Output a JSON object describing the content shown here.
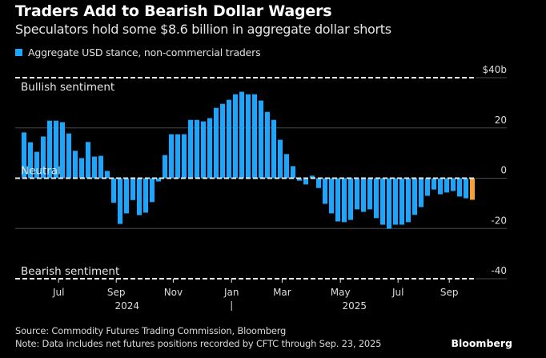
{
  "header": {
    "title": "Traders Add to Bearish Dollar Wagers",
    "subtitle": "Speculators hold some $8.6 billion in aggregate dollar shorts"
  },
  "legend": {
    "label": "Aggregate USD stance, non-commercial traders",
    "color": "#1aa7ff"
  },
  "footer": {
    "source": "Source: Commodity Futures Trading Commission, Bloomberg",
    "note": "Note: Data includes net futures positions recorded by CFTC through Sep. 23, 2025",
    "brand": "Bloomberg"
  },
  "chart_data": {
    "type": "bar",
    "title": "Traders Add to Bearish Dollar Wagers",
    "subtitle": "Speculators hold some $8.6 billion in aggregate dollar shorts",
    "xlabel": "",
    "ylabel": "",
    "ylim": [
      -40,
      40
    ],
    "yticks": [
      {
        "value": 40,
        "label": "$40b"
      },
      {
        "value": 20,
        "label": "20"
      },
      {
        "value": 0,
        "label": "0"
      },
      {
        "value": -20,
        "label": "-20"
      },
      {
        "value": -40,
        "label": "-40"
      }
    ],
    "grid": true,
    "legend_position": "top-left",
    "frequency": "weekly",
    "last_date": "Sep. 23, 2025",
    "bar_color": "#1aa7ff",
    "highlight_color": "#f7a030",
    "highlight_last": true,
    "annotations": [
      {
        "text": "Bullish sentiment",
        "value": 40
      },
      {
        "text": "Neutral",
        "value": 0
      },
      {
        "text": "Bearish sentiment",
        "value": -40
      }
    ],
    "xticks": [
      {
        "label": "Jul",
        "index": 5.4
      },
      {
        "label": "Sep",
        "index": 14.4
      },
      {
        "label": "Nov",
        "index": 23.3
      },
      {
        "label": "Jan",
        "index": 32.4
      },
      {
        "label": "Mar",
        "index": 40.3
      },
      {
        "label": "May",
        "index": 49.4
      },
      {
        "label": "Jul",
        "index": 58.4
      },
      {
        "label": "Sep",
        "index": 66.4
      }
    ],
    "year_labels": [
      {
        "label": "2024",
        "index": 16.1
      },
      {
        "label": "2025",
        "index": 51.6
      }
    ],
    "year_separator_index": 32.4,
    "series": [
      {
        "name": "Aggregate USD stance, non-commercial traders",
        "values": [
          18.2,
          14.3,
          10.5,
          16.6,
          22.9,
          22.9,
          22.3,
          17.8,
          10.9,
          8.0,
          14.4,
          8.6,
          8.9,
          2.9,
          -9.8,
          -18.2,
          -14.0,
          -8.7,
          -14.7,
          -13.7,
          -9.5,
          -1.3,
          9.2,
          17.5,
          17.5,
          17.5,
          23.2,
          23.2,
          22.6,
          23.9,
          28.0,
          29.6,
          31.2,
          33.4,
          34.4,
          33.4,
          33.4,
          30.9,
          26.4,
          23.2,
          15.3,
          9.6,
          4.8,
          -1.0,
          -2.5,
          1.0,
          -3.9,
          -10.2,
          -14.0,
          -17.2,
          -17.5,
          -16.6,
          -12.4,
          -13.4,
          -12.4,
          -15.9,
          -18.5,
          -20.1,
          -18.5,
          -18.5,
          -17.5,
          -14.6,
          -11.5,
          -7.0,
          -4.5,
          -6.4,
          -5.7,
          -5.1,
          -7.3,
          -8.0,
          -8.6
        ]
      }
    ]
  }
}
